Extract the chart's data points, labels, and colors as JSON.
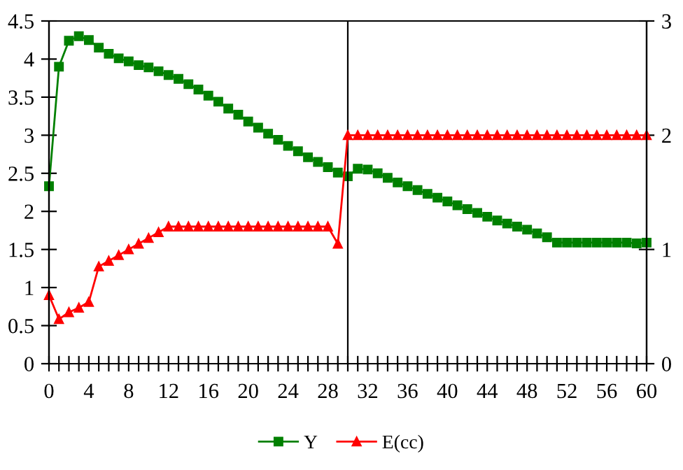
{
  "chart_data": {
    "type": "line",
    "x": [
      0,
      1,
      2,
      3,
      4,
      5,
      6,
      7,
      8,
      9,
      10,
      11,
      12,
      13,
      14,
      15,
      16,
      17,
      18,
      19,
      20,
      21,
      22,
      23,
      24,
      25,
      26,
      27,
      28,
      29,
      30,
      31,
      32,
      33,
      34,
      35,
      36,
      37,
      38,
      39,
      40,
      41,
      42,
      43,
      44,
      45,
      46,
      47,
      48,
      49,
      50,
      51,
      52,
      53,
      54,
      55,
      56,
      57,
      58,
      59,
      60
    ],
    "series": [
      {
        "name": "Y",
        "color": "#008000",
        "marker": "square",
        "values": [
          2.33,
          3.9,
          4.24,
          4.3,
          4.25,
          4.15,
          4.07,
          4.01,
          3.97,
          3.92,
          3.89,
          3.84,
          3.79,
          3.74,
          3.67,
          3.6,
          3.52,
          3.44,
          3.35,
          3.27,
          3.18,
          3.1,
          3.02,
          2.94,
          2.86,
          2.79,
          2.71,
          2.65,
          2.58,
          2.51,
          2.46,
          2.56,
          2.55,
          2.5,
          2.44,
          2.38,
          2.33,
          2.28,
          2.23,
          2.18,
          2.13,
          2.08,
          2.03,
          1.98,
          1.93,
          1.88,
          1.84,
          1.8,
          1.76,
          1.71,
          1.66,
          1.59,
          1.59,
          1.59,
          1.59,
          1.59,
          1.59,
          1.59,
          1.59,
          1.58,
          1.59
        ]
      },
      {
        "name": "E(cc)",
        "color": "#ff0000",
        "marker": "triangle",
        "axis": "y2",
        "values": [
          0.6,
          0.39,
          0.45,
          0.49,
          0.54,
          0.85,
          0.9,
          0.95,
          1.0,
          1.05,
          1.1,
          1.15,
          1.2,
          1.2,
          1.2,
          1.2,
          1.2,
          1.2,
          1.2,
          1.2,
          1.2,
          1.2,
          1.2,
          1.2,
          1.2,
          1.2,
          1.2,
          1.2,
          1.2,
          1.05,
          2,
          2,
          2,
          2,
          2,
          2,
          2,
          2,
          2,
          2,
          2,
          2,
          2,
          2,
          2,
          2,
          2,
          2,
          2,
          2,
          2,
          2,
          2,
          2,
          2,
          2,
          2,
          2,
          2,
          2,
          2
        ]
      }
    ],
    "xlim": [
      0,
      60
    ],
    "xticks": [
      0,
      {
        "value": 1,
        "label": null
      },
      {
        "value": 2,
        "label": null
      },
      {
        "value": 3,
        "label": null
      },
      4,
      {
        "value": 5,
        "label": null
      },
      {
        "value": 6,
        "label": null
      },
      {
        "value": 7,
        "label": null
      },
      8,
      {
        "value": 9,
        "label": null
      },
      {
        "value": 10,
        "label": null
      },
      {
        "value": 11,
        "label": null
      },
      12,
      {
        "value": 13,
        "label": null
      },
      {
        "value": 14,
        "label": null
      },
      {
        "value": 15,
        "label": null
      },
      16,
      {
        "value": 17,
        "label": null
      },
      {
        "value": 18,
        "label": null
      },
      {
        "value": 19,
        "label": null
      },
      20,
      {
        "value": 21,
        "label": null
      },
      {
        "value": 22,
        "label": null
      },
      {
        "value": 23,
        "label": null
      },
      24,
      {
        "value": 25,
        "label": null
      },
      {
        "value": 26,
        "label": null
      },
      {
        "value": 27,
        "label": null
      },
      28,
      {
        "value": 29,
        "label": null
      },
      {
        "value": 30,
        "label": null
      },
      {
        "value": 31,
        "label": null
      },
      32,
      {
        "value": 33,
        "label": null
      },
      {
        "value": 34,
        "label": null
      },
      {
        "value": 35,
        "label": null
      },
      36,
      {
        "value": 37,
        "label": null
      },
      {
        "value": 38,
        "label": null
      },
      {
        "value": 39,
        "label": null
      },
      40,
      {
        "value": 41,
        "label": null
      },
      {
        "value": 42,
        "label": null
      },
      {
        "value": 43,
        "label": null
      },
      44,
      {
        "value": 45,
        "label": null
      },
      {
        "value": 46,
        "label": null
      },
      {
        "value": 47,
        "label": null
      },
      48,
      {
        "value": 49,
        "label": null
      },
      {
        "value": 50,
        "label": null
      },
      {
        "value": 51,
        "label": null
      },
      52,
      {
        "value": 53,
        "label": null
      },
      {
        "value": 54,
        "label": null
      },
      {
        "value": 55,
        "label": null
      },
      56,
      {
        "value": 57,
        "label": null
      },
      {
        "value": 58,
        "label": null
      },
      {
        "value": 59,
        "label": null
      },
      60
    ],
    "ylim": [
      0,
      4.5
    ],
    "yticks": [
      0,
      0.5,
      1,
      1.5,
      2,
      2.5,
      3,
      3.5,
      4,
      4.5
    ],
    "y2lim": [
      0,
      3
    ],
    "y2ticks": [
      0,
      1,
      2,
      3
    ],
    "ref_lines": [
      {
        "axis": "x",
        "value": 30,
        "color": "#000000"
      }
    ],
    "line_style": "solid",
    "grid": false,
    "legend": "bottom"
  }
}
